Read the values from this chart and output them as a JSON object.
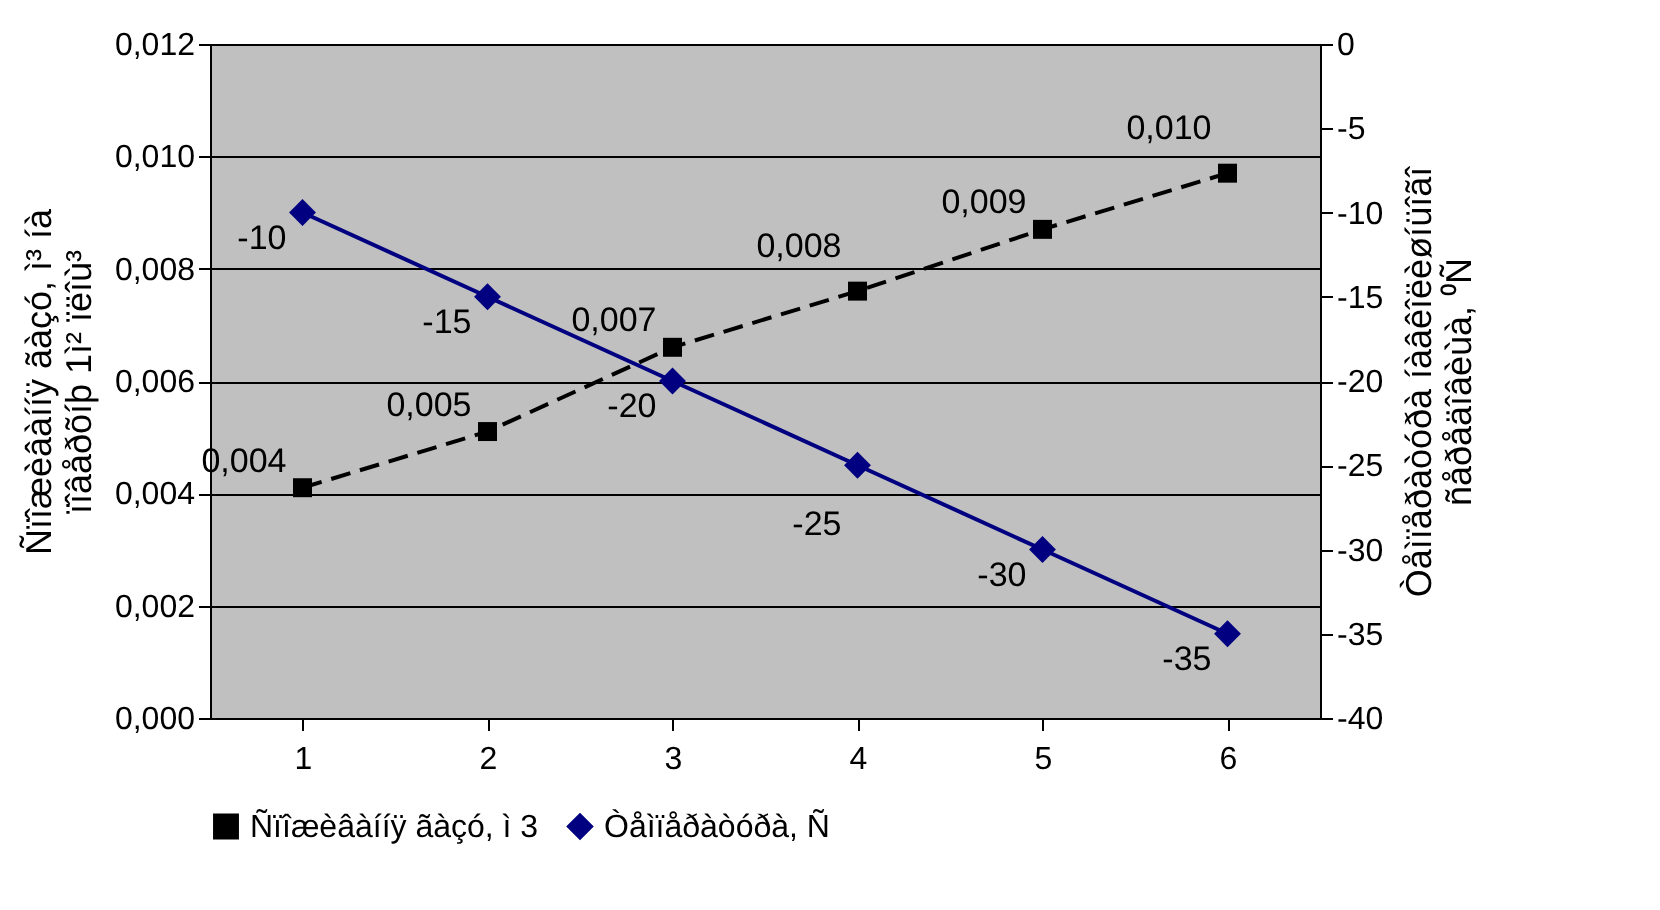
{
  "chart_data": {
    "type": "line",
    "categories": [
      "1",
      "2",
      "3",
      "4",
      "5",
      "6"
    ],
    "ylabel": "Ñïîæèâàííÿ ãàçó, ì³ íà\nïîâåðõíþ 1ì² ïëîù³",
    "y2label": "Òåìïåðàòóðà íàâêîëèøíüîãî\nñåðåäîâèùà, ⁰Ñ",
    "series": [
      {
        "name": "Ñïîæèâàííÿ ãàçó, ì 3",
        "color": "#000000",
        "marker": "square",
        "line_style": "dashed",
        "values": [
          0.0041,
          0.0051,
          0.0066,
          0.0076,
          0.0087,
          0.0097
        ],
        "value_labels": [
          "0,004",
          "0,005",
          "0,007",
          "0,008",
          "0,009",
          "0,010"
        ]
      },
      {
        "name": "Òåìïåðàòóðà, Ñ",
        "color": "#000080",
        "marker": "diamond",
        "line_style": "solid",
        "axis": "y2",
        "values": [
          -10,
          -15,
          -20,
          -25,
          -30,
          -35
        ],
        "value_labels": [
          "-10",
          "-15",
          "-20",
          "-25",
          "-30",
          "-35"
        ]
      }
    ],
    "ylim": [
      0,
      0.012
    ],
    "yticks": [
      {
        "value": 0,
        "label": "0,000"
      },
      {
        "value": 0.002,
        "label": "0,002"
      },
      {
        "value": 0.004,
        "label": "0,004"
      },
      {
        "value": 0.006,
        "label": "0,006"
      },
      {
        "value": 0.008,
        "label": "0,008"
      },
      {
        "value": 0.01,
        "label": "0,010"
      },
      {
        "value": 0.012,
        "label": "0,012"
      }
    ],
    "y2lim": [
      -40,
      0
    ],
    "y2ticks": [
      -40,
      -35,
      -30,
      -25,
      -20,
      -15,
      -10,
      -5,
      0
    ],
    "grid": "y",
    "legend": "bottom"
  }
}
